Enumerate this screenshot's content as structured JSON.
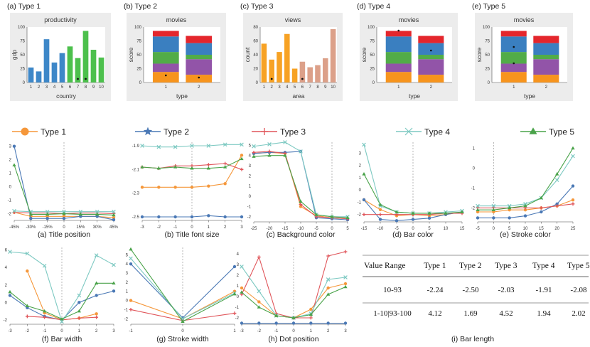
{
  "colors": {
    "type1": "#f5973a",
    "type2": "#4a78b5",
    "type3": "#e0555a",
    "type4": "#7dc9c2",
    "type5": "#4aa34a",
    "bar_blue": "#3d87c8",
    "bar_green": "#4cc04c",
    "bar_orange": "#f7a224",
    "bar_salmon": "#dca089",
    "stack_red": "#e4262c",
    "stack_blue": "#3a7fc0",
    "stack_green": "#52ac48",
    "stack_purple": "#9254a8",
    "stack_orange": "#f7941d",
    "panel_bg": "#ececec"
  },
  "top": [
    {
      "caption": "(a) Type 1",
      "title": "productivity",
      "kind": "bars",
      "ylabel": "gdp",
      "xlabel": "country",
      "categories": [
        "1",
        "2",
        "3",
        "4",
        "5",
        "6",
        "7",
        "8",
        "9",
        "10"
      ],
      "values": [
        27,
        20,
        78,
        36,
        53,
        65,
        44,
        93,
        59,
        45
      ],
      "bar_colors": [
        "blue",
        "blue",
        "blue",
        "blue",
        "blue",
        "green",
        "green",
        "green",
        "green",
        "green"
      ],
      "dots": [
        7,
        8
      ],
      "yticks": [
        "0",
        "25",
        "50",
        "75",
        "100"
      ]
    },
    {
      "caption": "(b) Type 2",
      "title": "movies",
      "kind": "stack",
      "ylabel": "score",
      "xlabel": "type",
      "categories": [
        "1",
        "2"
      ],
      "dot_bars": [
        1,
        2
      ]
    },
    {
      "caption": "(c) Type 3",
      "title": "views",
      "kind": "bars",
      "ylabel": "count",
      "xlabel": "area",
      "categories": [
        "1",
        "2",
        "3",
        "4",
        "5",
        "6",
        "7",
        "8",
        "9",
        "10"
      ],
      "values": [
        56,
        33,
        44,
        70,
        20,
        30,
        22,
        25,
        35,
        77
      ],
      "bar_colors": [
        "orange",
        "orange",
        "orange",
        "orange",
        "orange",
        "salmon",
        "salmon",
        "salmon",
        "salmon",
        "salmon"
      ],
      "dots": [
        2,
        6
      ],
      "yticks": [
        "0",
        "20",
        "40",
        "60",
        "80"
      ]
    },
    {
      "caption": "(d) Type 4",
      "title": "movies",
      "kind": "stack",
      "ylabel": "score",
      "xlabel": "type",
      "categories": [
        "1",
        "2"
      ],
      "dot_bars": [
        1,
        2
      ]
    },
    {
      "caption": "(e) Type 5",
      "title": "movies",
      "kind": "stack",
      "ylabel": "score",
      "xlabel": "type",
      "categories": [
        "1",
        "2"
      ],
      "dot_bars": [
        1,
        1
      ]
    }
  ],
  "stack_segments": {
    "bar1": [
      [
        "orange",
        19
      ],
      [
        "purple",
        15
      ],
      [
        "green",
        21
      ],
      [
        "blue",
        28
      ],
      [
        "red",
        10
      ]
    ],
    "bar2": [
      [
        "orange",
        14
      ],
      [
        "purple",
        28
      ],
      [
        "green",
        8
      ],
      [
        "blue",
        21
      ],
      [
        "red",
        13
      ]
    ],
    "yticks": [
      "0",
      "25",
      "50",
      "75",
      "100"
    ]
  },
  "legend": [
    {
      "label": "Type 1",
      "key": "type1",
      "marker": "circle"
    },
    {
      "label": "Type 2",
      "key": "type2",
      "marker": "star"
    },
    {
      "label": "Type 3",
      "key": "type3",
      "marker": "plus"
    },
    {
      "label": "Type 4",
      "key": "type4",
      "marker": "x"
    },
    {
      "label": "Type 5",
      "key": "type5",
      "marker": "triangle"
    }
  ],
  "chart_data": [
    {
      "id": "a",
      "type": "line",
      "title": "(a) Title position",
      "x": [
        -45,
        -30,
        -15,
        0,
        15,
        30,
        45
      ],
      "xticks": [
        "-45%",
        "-30%",
        "-15%",
        "0",
        "15%",
        "30%",
        "45%"
      ],
      "ylim": [
        -2.5,
        3.3
      ],
      "yticks": [
        3,
        2,
        1,
        0,
        -1,
        -2
      ],
      "series": [
        {
          "name": "Type 1",
          "values": [
            -1.9,
            -2.2,
            -2.2,
            -2.2,
            -2.2,
            -2.2,
            -2.3
          ]
        },
        {
          "name": "Type 2",
          "values": [
            3.0,
            -2.35,
            -2.35,
            -2.35,
            -2.2,
            -2.2,
            -2.45
          ]
        },
        {
          "name": "Type 3",
          "values": [
            -1.9,
            -1.95,
            -1.95,
            -2.0,
            -1.95,
            -1.95,
            -2.0
          ]
        },
        {
          "name": "Type 4",
          "values": [
            -1.8,
            -1.85,
            -1.85,
            -1.85,
            -1.85,
            -1.85,
            -1.85
          ]
        },
        {
          "name": "Type 5",
          "values": [
            1.6,
            -2.05,
            -2.05,
            -2.0,
            -2.05,
            -2.05,
            -2.1
          ]
        }
      ]
    },
    {
      "id": "b",
      "type": "line",
      "title": "(b) Title font size",
      "x": [
        -3,
        -2,
        -1,
        0,
        1,
        2,
        3
      ],
      "xticks": [
        "-3",
        "-2",
        "-1",
        "0",
        "1",
        "2",
        "3"
      ],
      "ylim": [
        -2.53,
        -1.87
      ],
      "yticks": [
        -1.9,
        -2.1,
        -2.3,
        -2.5
      ],
      "series": [
        {
          "name": "Type 1",
          "values": [
            -2.25,
            -2.25,
            -2.25,
            -2.25,
            -2.24,
            -2.22,
            -1.98
          ]
        },
        {
          "name": "Type 2",
          "values": [
            -2.5,
            -2.5,
            -2.5,
            -2.5,
            -2.49,
            -2.5,
            -2.5
          ]
        },
        {
          "name": "Type 3",
          "values": [
            -2.08,
            -2.09,
            -2.07,
            -2.07,
            -2.06,
            -2.05,
            -2.1
          ]
        },
        {
          "name": "Type 4",
          "values": [
            -1.9,
            -1.91,
            -1.91,
            -1.9,
            -1.9,
            -1.89,
            -1.89
          ]
        },
        {
          "name": "Type 5",
          "values": [
            -2.08,
            -2.09,
            -2.08,
            -2.09,
            -2.09,
            -2.08,
            -2.01
          ]
        }
      ]
    },
    {
      "id": "c",
      "type": "line",
      "title": "(c) Background color",
      "x": [
        -25,
        -20,
        -15,
        -10,
        -5,
        0,
        5
      ],
      "xticks": [
        "-25",
        "-20",
        "-15",
        "-10",
        "-5",
        "0",
        "5"
      ],
      "ylim": [
        -2.5,
        5.3
      ],
      "yticks": [
        5,
        4,
        3,
        2,
        1,
        0,
        -1,
        -2
      ],
      "series": [
        {
          "name": "Type 1",
          "values": [
            4.2,
            4.3,
            4.2,
            -1.0,
            -1.9,
            -2.1,
            -2.2
          ]
        },
        {
          "name": "Type 2",
          "values": [
            4.2,
            4.3,
            4.3,
            4.4,
            -2.1,
            -2.2,
            -2.3
          ]
        },
        {
          "name": "Type 3",
          "values": [
            4.3,
            4.4,
            4.2,
            -0.8,
            -2.0,
            -2.1,
            -2.2
          ]
        },
        {
          "name": "Type 4",
          "values": [
            4.9,
            5.1,
            5.3,
            4.4,
            -1.8,
            -2.0,
            -2.0
          ]
        },
        {
          "name": "Type 5",
          "values": [
            3.9,
            4.0,
            4.0,
            -0.5,
            -1.8,
            -2.0,
            -2.1
          ]
        }
      ]
    },
    {
      "id": "d",
      "type": "line",
      "title": "(d) Bar color",
      "x": [
        -15,
        -10,
        -5,
        0,
        5,
        10,
        15
      ],
      "xticks": [
        "-15",
        "-10",
        "-5",
        "0",
        "5",
        "10",
        "15"
      ],
      "ylim": [
        -2.6,
        3.9
      ],
      "yticks": [
        3,
        2,
        1,
        0,
        -1,
        -2
      ],
      "series": [
        {
          "name": "Type 1",
          "values": [
            -0.8,
            -1.6,
            -2.1,
            -2.0,
            -2.1,
            -2.0,
            -1.8
          ]
        },
        {
          "name": "Type 2",
          "values": [
            -0.8,
            -2.4,
            -2.5,
            -2.4,
            -2.3,
            -2.0,
            -1.8
          ]
        },
        {
          "name": "Type 3",
          "values": [
            -2.0,
            -2.0,
            -2.0,
            -2.0,
            -2.0,
            -1.9,
            -1.9
          ]
        },
        {
          "name": "Type 4",
          "values": [
            3.7,
            -1.3,
            -1.8,
            -1.9,
            -1.9,
            -1.8,
            -1.7
          ]
        },
        {
          "name": "Type 5",
          "values": [
            1.3,
            -1.2,
            -1.8,
            -1.9,
            -1.9,
            -1.9,
            -1.8
          ]
        }
      ]
    },
    {
      "id": "e",
      "type": "line",
      "title": "(e) Stroke color",
      "x": [
        -5,
        0,
        5,
        10,
        15,
        20,
        25
      ],
      "xticks": [
        "-5",
        "0",
        "5",
        "10",
        "15",
        "20",
        "25"
      ],
      "ylim": [
        -2.7,
        1.3
      ],
      "yticks": [
        1,
        0,
        -1,
        -2
      ],
      "series": [
        {
          "name": "Type 1",
          "values": [
            -2.2,
            -2.2,
            -2.1,
            -2.1,
            -2.0,
            -1.9,
            -1.6
          ]
        },
        {
          "name": "Type 2",
          "values": [
            -2.5,
            -2.5,
            -2.5,
            -2.4,
            -2.2,
            -1.8,
            -0.9
          ]
        },
        {
          "name": "Type 3",
          "values": [
            -2.0,
            -2.0,
            -2.0,
            -2.0,
            -2.0,
            -1.9,
            -1.8
          ]
        },
        {
          "name": "Type 4",
          "values": [
            -1.9,
            -1.9,
            -1.9,
            -1.8,
            -1.5,
            -0.6,
            0.6
          ]
        },
        {
          "name": "Type 5",
          "values": [
            -2.1,
            -2.1,
            -2.0,
            -1.9,
            -1.5,
            -0.3,
            1.0
          ]
        }
      ]
    },
    {
      "id": "f",
      "type": "line",
      "title": "(f) Bar width",
      "x": [
        -3,
        -2,
        -1,
        0,
        1,
        2,
        3
      ],
      "xticks": [
        "-3",
        "-2",
        "-1",
        "0",
        "1",
        "2",
        "3"
      ],
      "ylim": [
        -2.5,
        6.3
      ],
      "yticks": [
        6,
        4,
        2,
        0,
        -2
      ],
      "series": [
        {
          "name": "Type 1",
          "values": [
            null,
            3.6,
            -1.2,
            -2.0,
            -1.8,
            -1.3,
            null
          ]
        },
        {
          "name": "Type 2",
          "values": [
            0.8,
            -0.6,
            -1.6,
            -2.0,
            0.0,
            0.8,
            1.3
          ]
        },
        {
          "name": "Type 3",
          "values": [
            null,
            -1.6,
            -1.7,
            -2.0,
            -1.8,
            -1.7,
            null
          ]
        },
        {
          "name": "Type 4",
          "values": [
            5.8,
            5.6,
            4.2,
            -2.2,
            0.8,
            5.4,
            4.3
          ]
        },
        {
          "name": "Type 5",
          "values": [
            1.2,
            -0.4,
            -1.0,
            -1.9,
            -1.0,
            2.2,
            2.2
          ]
        }
      ]
    },
    {
      "id": "g",
      "type": "line",
      "title": "(g) Stroke width",
      "x": [
        -1,
        0,
        1
      ],
      "xticks": [
        "-1",
        "0",
        "1"
      ],
      "ylim": [
        -2.6,
        5.8
      ],
      "yticks": [
        5,
        4,
        3,
        2,
        1,
        0,
        -1,
        -2
      ],
      "series": [
        {
          "name": "Type 1",
          "values": [
            0.0,
            -2.0,
            1.0
          ]
        },
        {
          "name": "Type 2",
          "values": [
            4.0,
            -1.9,
            3.7
          ]
        },
        {
          "name": "Type 3",
          "values": [
            -1.0,
            -2.2,
            -1.4
          ]
        },
        {
          "name": "Type 4",
          "values": [
            4.6,
            -2.0,
            0.8
          ]
        },
        {
          "name": "Type 5",
          "values": [
            5.6,
            -2.3,
            0.7
          ]
        }
      ]
    },
    {
      "id": "h",
      "type": "line",
      "title": "(h) Dot position",
      "x": [
        -3,
        -2,
        -1,
        0,
        1,
        2,
        3
      ],
      "xticks": [
        "-3",
        "-2",
        "-1",
        "0",
        "1",
        "2",
        "3"
      ],
      "ylim": [
        -2.6,
        4.6
      ],
      "yticks": [
        4,
        3,
        2,
        1,
        0,
        -1,
        -2
      ],
      "series": [
        {
          "name": "Type 1",
          "values": [
            0.8,
            -0.5,
            -1.8,
            -2.0,
            -1.2,
            0.8,
            1.2
          ]
        },
        {
          "name": "Type 2",
          "values": [
            -2.5,
            -2.5,
            -2.5,
            -2.5,
            -2.5,
            -2.5,
            -2.5
          ]
        },
        {
          "name": "Type 3",
          "values": [
            0.2,
            3.7,
            -1.6,
            -2.0,
            -2.0,
            3.8,
            4.2
          ]
        },
        {
          "name": "Type 4",
          "values": [
            2.8,
            0.5,
            -1.8,
            -2.0,
            -1.6,
            1.6,
            1.8
          ]
        },
        {
          "name": "Type 5",
          "values": [
            0.4,
            -1.0,
            -1.8,
            -2.0,
            -1.7,
            0.2,
            0.9
          ]
        }
      ]
    },
    {
      "id": "i",
      "type": "table",
      "title": "(i) Bar length",
      "headers": [
        "Value Range",
        "Type 1",
        "Type 2",
        "Type 3",
        "Type 4",
        "Type 5"
      ],
      "rows": [
        [
          "10-93",
          "-2.24",
          "-2.50",
          "-2.03",
          "-1.91",
          "-2.08"
        ],
        [
          "1-10|93-100",
          "4.12",
          "1.69",
          "4.52",
          "1.94",
          "2.02"
        ]
      ]
    }
  ]
}
